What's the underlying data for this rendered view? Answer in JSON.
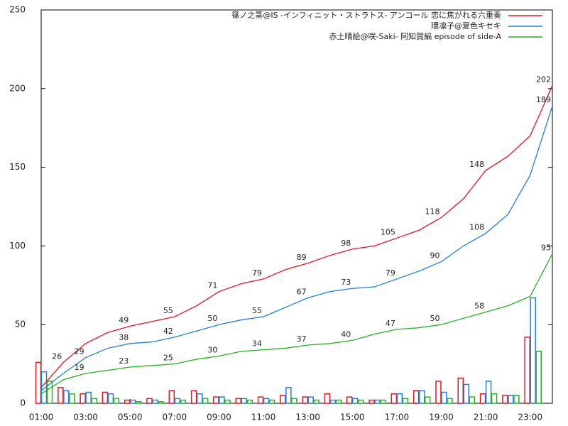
{
  "chart_data": {
    "type": "line",
    "x": [
      1,
      2,
      3,
      4,
      5,
      6,
      7,
      8,
      9,
      10,
      11,
      12,
      13,
      14,
      15,
      16,
      17,
      18,
      19,
      20,
      21,
      22,
      23,
      24
    ],
    "xlim": [
      1,
      24
    ],
    "xticks": [
      {
        "value": 1,
        "label": "01:00"
      },
      {
        "value": 3,
        "label": "03:00"
      },
      {
        "value": 5,
        "label": "05:00"
      },
      {
        "value": 7,
        "label": "07:00"
      },
      {
        "value": 9,
        "label": "09:00"
      },
      {
        "value": 11,
        "label": "11:00"
      },
      {
        "value": 13,
        "label": "13:00"
      },
      {
        "value": 15,
        "label": "15:00"
      },
      {
        "value": 17,
        "label": "17:00"
      },
      {
        "value": 19,
        "label": "19:00"
      },
      {
        "value": 21,
        "label": "21:00"
      },
      {
        "value": 23,
        "label": "23:00"
      }
    ],
    "ylim": [
      0,
      250
    ],
    "yticks": [
      0,
      50,
      100,
      150,
      200,
      250
    ],
    "legend": "upper right",
    "series": [
      {
        "name": "篠ノ之箒@IS -インフィニット・ストラトス- アンコール 恋に焦がれる六重奏",
        "color": "#e8141e",
        "values": [
          10,
          26,
          38,
          45,
          49,
          52,
          55,
          62,
          71,
          76,
          79,
          85,
          89,
          94,
          98,
          100,
          105,
          110,
          118,
          130,
          148,
          157,
          170,
          202
        ],
        "value_labels": [
          null,
          "26",
          null,
          null,
          "49",
          null,
          "55",
          null,
          "71",
          null,
          "79",
          null,
          "89",
          null,
          "98",
          null,
          "105",
          null,
          "118",
          null,
          "148",
          null,
          null,
          "202"
        ],
        "hourly": [
          26,
          10,
          6,
          7,
          2,
          3,
          8,
          8,
          4,
          3,
          4,
          5,
          4,
          6,
          4,
          2,
          6,
          8,
          14,
          16,
          6,
          5,
          42
        ]
      },
      {
        "name": "環凛子@夏色キセキ",
        "color": "#1e7fe0",
        "values": [
          8,
          19,
          29,
          35,
          38,
          39,
          42,
          46,
          50,
          53,
          55,
          61,
          67,
          71,
          73,
          74,
          79,
          84,
          90,
          100,
          108,
          120,
          145,
          189
        ],
        "value_labels": [
          null,
          null,
          "29",
          null,
          "38",
          null,
          "42",
          null,
          "50",
          null,
          "55",
          null,
          "67",
          null,
          "73",
          null,
          "79",
          null,
          "90",
          null,
          "108",
          null,
          null,
          "189"
        ],
        "hourly": [
          20,
          8,
          7,
          6,
          2,
          2,
          3,
          6,
          4,
          3,
          3,
          10,
          4,
          2,
          3,
          2,
          6,
          8,
          7,
          12,
          14,
          5,
          67
        ]
      },
      {
        "name": "赤土晴絵@咲-Saki- 阿知賀編 episode of side-A",
        "color": "#22b422",
        "values": [
          6,
          15,
          19,
          21,
          23,
          24,
          25,
          28,
          30,
          33,
          34,
          35,
          37,
          38,
          40,
          44,
          47,
          48,
          50,
          54,
          58,
          62,
          68,
          95
        ],
        "value_labels": [
          null,
          null,
          "19",
          null,
          "23",
          null,
          "25",
          null,
          "30",
          null,
          "34",
          null,
          "37",
          null,
          "40",
          null,
          "47",
          null,
          "50",
          null,
          "58",
          null,
          null,
          "95"
        ],
        "hourly": [
          14,
          6,
          3,
          3,
          1,
          1,
          2,
          3,
          2,
          2,
          2,
          3,
          2,
          2,
          2,
          2,
          3,
          4,
          3,
          4,
          6,
          5,
          33
        ]
      }
    ]
  }
}
